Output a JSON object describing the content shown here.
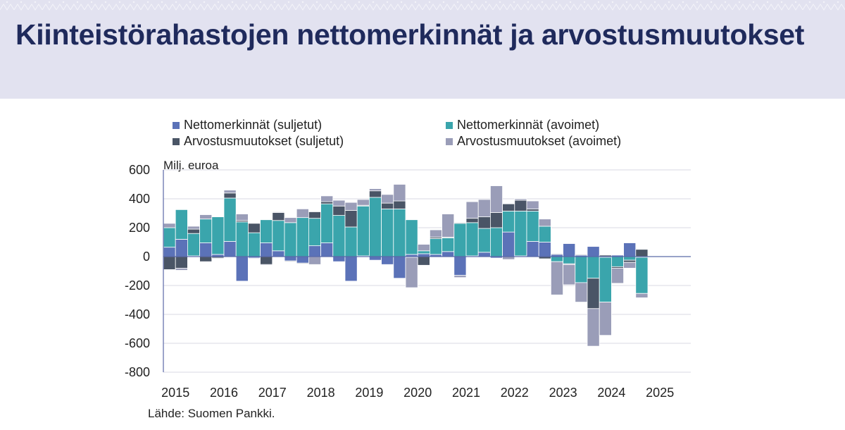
{
  "title": "Kiinteistörahastojen nettomerkinnät ja arvostusmuutokset",
  "source": "Lähde: Suomen Pankki.",
  "chart_data": {
    "type": "bar",
    "stacked": true,
    "unit_label": "Milj. euroa",
    "ylim": [
      -800,
      600
    ],
    "yticks": [
      600,
      400,
      200,
      0,
      -200,
      -400,
      -600,
      -800
    ],
    "year_labels": [
      "2015",
      "2016",
      "2017",
      "2018",
      "2019",
      "2020",
      "2021",
      "2022",
      "2023",
      "2024",
      "2025"
    ],
    "grid": true,
    "legend_position": "top",
    "categories": [
      "2015Q1",
      "2015Q2",
      "2015Q3",
      "2015Q4",
      "2016Q1",
      "2016Q2",
      "2016Q3",
      "2016Q4",
      "2017Q1",
      "2017Q2",
      "2017Q3",
      "2017Q4",
      "2018Q1",
      "2018Q2",
      "2018Q3",
      "2018Q4",
      "2019Q1",
      "2019Q2",
      "2019Q3",
      "2019Q4",
      "2020Q1",
      "2020Q2",
      "2020Q3",
      "2020Q4",
      "2021Q1",
      "2021Q2",
      "2021Q3",
      "2021Q4",
      "2022Q1",
      "2022Q2",
      "2022Q3",
      "2022Q4",
      "2023Q1",
      "2023Q2",
      "2023Q3",
      "2023Q4",
      "2024Q1",
      "2024Q2",
      "2024Q3",
      "2024Q4"
    ],
    "series": [
      {
        "name": "Nettomerkinnät (suljetut)",
        "color": "#5b72b8",
        "values": [
          65,
          120,
          5,
          95,
          15,
          105,
          -170,
          -10,
          95,
          40,
          -30,
          -45,
          75,
          95,
          -35,
          -170,
          5,
          -25,
          -55,
          -150,
          15,
          20,
          15,
          35,
          -130,
          5,
          30,
          -10,
          170,
          5,
          105,
          100,
          15,
          90,
          10,
          70,
          -5,
          10,
          95,
          -5
        ]
      },
      {
        "name": "Nettomerkinnät (avoimet)",
        "color": "#3aa5ac",
        "values": [
          135,
          205,
          155,
          165,
          260,
          300,
          240,
          165,
          160,
          210,
          235,
          270,
          190,
          270,
          285,
          205,
          345,
          410,
          330,
          330,
          240,
          20,
          110,
          95,
          230,
          230,
          165,
          200,
          145,
          310,
          210,
          110,
          -35,
          -50,
          -180,
          -150,
          -310,
          -70,
          -25,
          -250
        ]
      },
      {
        "name": "Arvostusmuutokset (suljetut)",
        "color": "#4a5566",
        "values": [
          -90,
          -80,
          30,
          -35,
          -10,
          35,
          10,
          65,
          -55,
          55,
          -5,
          -5,
          45,
          15,
          65,
          115,
          5,
          45,
          40,
          55,
          -5,
          -60,
          10,
          5,
          5,
          30,
          80,
          105,
          50,
          75,
          15,
          -15,
          5,
          -5,
          5,
          -210,
          10,
          -10,
          -15,
          50
        ]
      },
      {
        "name": "Arvostusmuutokset (avoimet)",
        "color": "#9a9db8",
        "values": [
          30,
          -15,
          20,
          30,
          -5,
          20,
          45,
          -5,
          -5,
          5,
          35,
          60,
          -55,
          40,
          40,
          55,
          40,
          15,
          60,
          115,
          -210,
          45,
          50,
          160,
          -15,
          115,
          120,
          185,
          -20,
          10,
          55,
          50,
          -230,
          -140,
          -135,
          -260,
          -230,
          -105,
          -40,
          -30
        ]
      }
    ]
  }
}
